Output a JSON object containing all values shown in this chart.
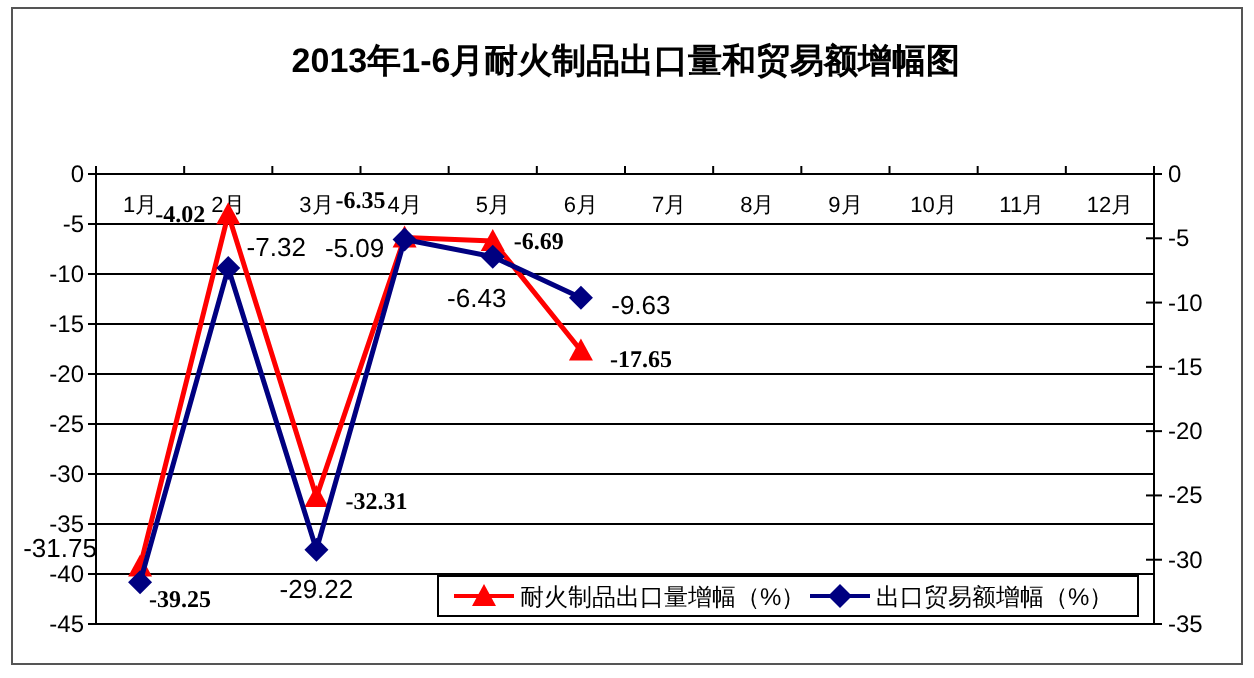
{
  "chart_data": {
    "type": "line",
    "title": "2013年1-6月耐火制品出口量和贸易额增幅图",
    "categories": [
      "1月",
      "2月",
      "3月",
      "4月",
      "5月",
      "6月",
      "7月",
      "8月",
      "9月",
      "10月",
      "11月",
      "12月"
    ],
    "series": [
      {
        "name": "耐火制品出口量增幅（%）",
        "color": "#ff0000",
        "marker": "triangle",
        "values": [
          -39.25,
          -4.02,
          -32.31,
          -6.35,
          -6.69,
          -17.65,
          null,
          null,
          null,
          null,
          null,
          null
        ],
        "value_labels": [
          "-39.25",
          "-4.02",
          "-32.31",
          "-6.35",
          "-6.69",
          "-17.65",
          null,
          null,
          null,
          null,
          null,
          null
        ]
      },
      {
        "name": "出口贸易额增幅（%）",
        "color": "#000080",
        "marker": "diamond",
        "axis": "y2",
        "values": [
          -31.75,
          -7.32,
          -29.22,
          -5.09,
          -6.43,
          -9.63,
          null,
          null,
          null,
          null,
          null,
          null
        ],
        "value_labels": [
          "-31.75",
          "-7.32",
          "-29.22",
          "-5.09",
          "-6.43",
          "-9.63",
          null,
          null,
          null,
          null,
          null,
          null
        ]
      }
    ],
    "ylim": [
      -45,
      0
    ],
    "yticks": [
      0,
      -5,
      -10,
      -15,
      -20,
      -25,
      -30,
      -35,
      -40,
      -45
    ],
    "y2lim": [
      -35,
      0
    ],
    "y2ticks": [
      0,
      -5,
      -10,
      -15,
      -20,
      -25,
      -30,
      -35
    ],
    "grid": "y",
    "legend": "bottom right"
  }
}
